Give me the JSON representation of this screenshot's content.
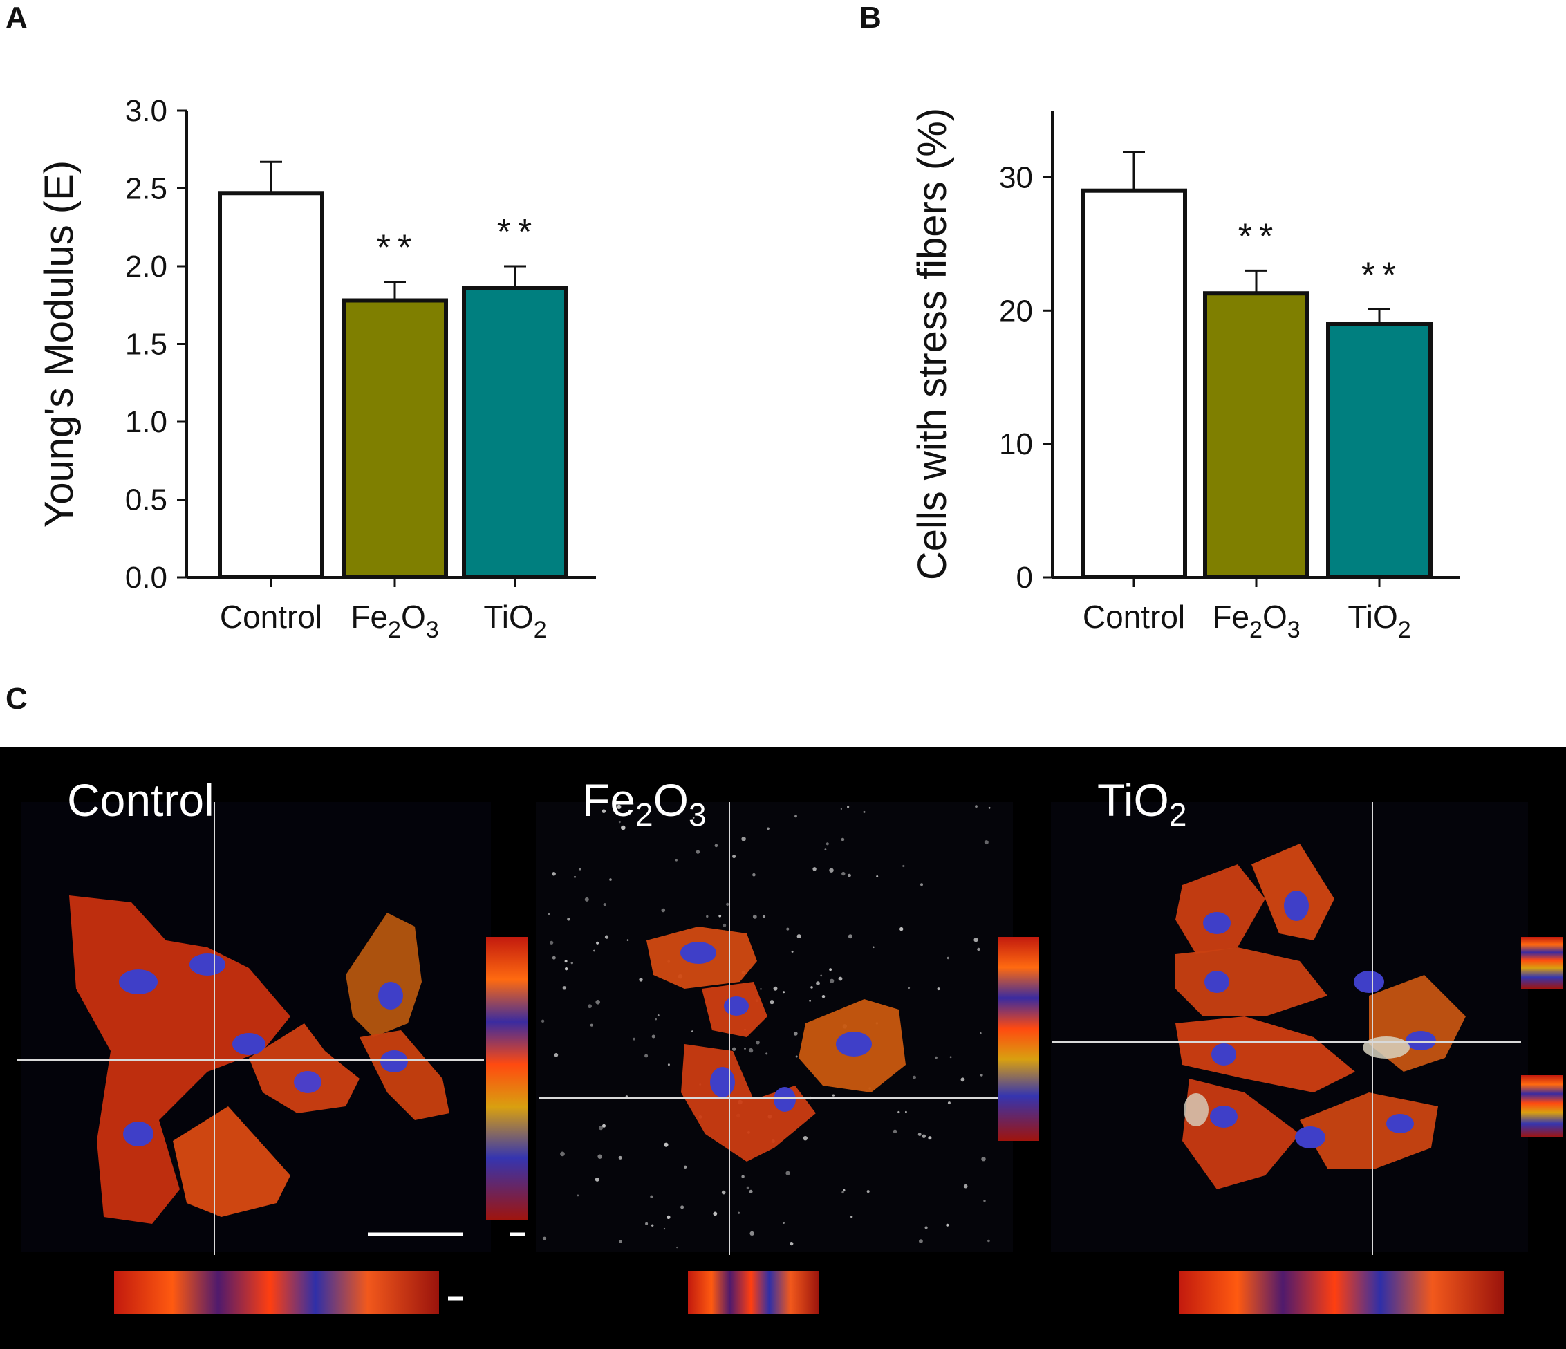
{
  "panels": {
    "a_label": "A",
    "b_label": "B",
    "c_label": "C"
  },
  "chart_data": [
    {
      "id": "A",
      "type": "bar",
      "title": "",
      "xlabel": "",
      "ylabel": "Young's Modulus (E)",
      "categories": [
        "Control",
        "Fe2O3",
        "TiO2"
      ],
      "category_display": [
        {
          "base": "Control",
          "parts": []
        },
        {
          "base": "Fe",
          "parts": [
            {
              "text": "2",
              "sub": true
            },
            {
              "text": "O",
              "sub": false
            },
            {
              "text": "3",
              "sub": true
            }
          ]
        },
        {
          "base": "TiO",
          "parts": [
            {
              "text": "2",
              "sub": true
            }
          ]
        }
      ],
      "values": [
        2.47,
        1.78,
        1.86
      ],
      "errors": [
        0.2,
        0.12,
        0.14
      ],
      "significance": [
        "",
        "**",
        "**"
      ],
      "colors": [
        "#ffffff",
        "#7f7f00",
        "#007f7f"
      ],
      "ylim": [
        0,
        3.0
      ],
      "yticks": [
        0.0,
        0.5,
        1.0,
        1.5,
        2.0,
        2.5,
        3.0
      ],
      "ytick_labels": [
        "0.0",
        "0.5",
        "1.0",
        "1.5",
        "2.0",
        "2.5",
        "3.0"
      ],
      "grid": false
    },
    {
      "id": "B",
      "type": "bar",
      "title": "",
      "xlabel": "",
      "ylabel": "Cells with stress fibers (%)",
      "categories": [
        "Control",
        "Fe2O3",
        "TiO2"
      ],
      "category_display": [
        {
          "base": "Control",
          "parts": []
        },
        {
          "base": "Fe",
          "parts": [
            {
              "text": "2",
              "sub": true
            },
            {
              "text": "O",
              "sub": false
            },
            {
              "text": "3",
              "sub": true
            }
          ]
        },
        {
          "base": "TiO",
          "parts": [
            {
              "text": "2",
              "sub": true
            }
          ]
        }
      ],
      "values": [
        29.0,
        21.3,
        19.0
      ],
      "errors": [
        2.9,
        1.7,
        1.1
      ],
      "significance": [
        "",
        "**",
        "**"
      ],
      "colors": [
        "#ffffff",
        "#7f7f00",
        "#007f7f"
      ],
      "ylim": [
        0,
        35
      ],
      "yticks": [
        0,
        10,
        20,
        30
      ],
      "ytick_labels": [
        "0",
        "10",
        "20",
        "30"
      ],
      "grid": false
    }
  ],
  "micrographs": [
    {
      "label_base": "Control",
      "label_parts": []
    },
    {
      "label_base": "Fe",
      "label_parts": [
        {
          "text": "2",
          "sub": true
        },
        {
          "text": "O",
          "sub": false
        },
        {
          "text": "3",
          "sub": true
        }
      ]
    },
    {
      "label_base": "TiO",
      "label_parts": [
        {
          "text": "2",
          "sub": true
        }
      ]
    }
  ],
  "colors": {
    "bar_outline": "#111111",
    "axis": "#111111",
    "micro_background": "#000000",
    "crosshair": "#d9d9d9"
  }
}
